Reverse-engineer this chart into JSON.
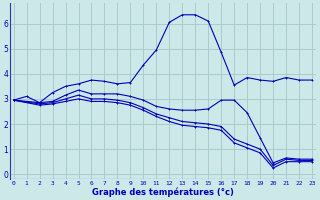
{
  "xlabel": "Graphe des températures (°c)",
  "background_color": "#cce8e8",
  "grid_color": "#aacccc",
  "line_color": "#0000bb",
  "border_color": "#3333aa",
  "ylim": [
    -0.2,
    6.8
  ],
  "xlim": [
    -0.3,
    23.3
  ],
  "yticks": [
    0,
    1,
    2,
    3,
    4,
    5,
    6
  ],
  "ytick_labels": [
    "0",
    "1",
    "2",
    "3",
    "4",
    "5",
    "6"
  ],
  "xticks": [
    0,
    1,
    2,
    3,
    4,
    5,
    6,
    7,
    8,
    9,
    10,
    11,
    12,
    13,
    14,
    15,
    16,
    17,
    18,
    19,
    20,
    21,
    22,
    23
  ],
  "xtick_labels": [
    "0",
    "1",
    "2",
    "3",
    "4",
    "5",
    "6",
    "7",
    "8",
    "9",
    "10",
    "11",
    "12",
    "13",
    "14",
    "15",
    "16",
    "17",
    "18",
    "19",
    "20",
    "21",
    "22",
    "23"
  ],
  "line1_x": [
    0,
    1,
    2,
    3,
    4,
    5,
    6,
    7,
    8,
    9,
    10,
    11,
    12,
    13,
    14,
    15,
    16,
    17,
    18,
    19,
    20,
    21,
    22,
    23
  ],
  "line1_y": [
    2.95,
    3.1,
    2.85,
    3.25,
    3.5,
    3.6,
    3.75,
    3.7,
    3.6,
    3.65,
    4.35,
    4.95,
    6.05,
    6.35,
    6.35,
    6.1,
    4.85,
    3.55,
    3.85,
    3.75,
    3.7,
    3.85,
    3.75,
    3.75
  ],
  "line2_x": [
    0,
    2,
    3,
    4,
    5,
    6,
    7,
    8,
    9,
    10,
    11,
    12,
    13,
    14,
    15,
    16,
    17,
    18,
    19,
    20,
    21,
    22,
    23
  ],
  "line2_y": [
    2.95,
    2.85,
    2.9,
    3.15,
    3.35,
    3.2,
    3.2,
    3.2,
    3.1,
    2.95,
    2.7,
    2.6,
    2.55,
    2.55,
    2.6,
    2.95,
    2.95,
    2.45,
    1.45,
    0.45,
    0.65,
    0.6,
    0.6
  ],
  "line3_x": [
    0,
    2,
    3,
    4,
    5,
    6,
    7,
    8,
    9,
    10,
    11,
    12,
    13,
    14,
    15,
    16,
    17,
    18,
    19,
    20,
    21,
    22,
    23
  ],
  "line3_y": [
    2.95,
    2.8,
    2.85,
    3.0,
    3.15,
    3.0,
    3.0,
    2.95,
    2.85,
    2.65,
    2.4,
    2.25,
    2.1,
    2.05,
    2.0,
    1.9,
    1.4,
    1.2,
    1.0,
    0.35,
    0.6,
    0.55,
    0.55
  ],
  "line4_x": [
    0,
    2,
    3,
    4,
    5,
    6,
    7,
    8,
    9,
    10,
    11,
    12,
    13,
    14,
    15,
    16,
    17,
    18,
    19,
    20,
    21,
    22,
    23
  ],
  "line4_y": [
    2.95,
    2.75,
    2.8,
    2.9,
    3.0,
    2.9,
    2.9,
    2.85,
    2.75,
    2.55,
    2.3,
    2.1,
    1.95,
    1.9,
    1.85,
    1.75,
    1.25,
    1.05,
    0.85,
    0.25,
    0.5,
    0.5,
    0.5
  ]
}
